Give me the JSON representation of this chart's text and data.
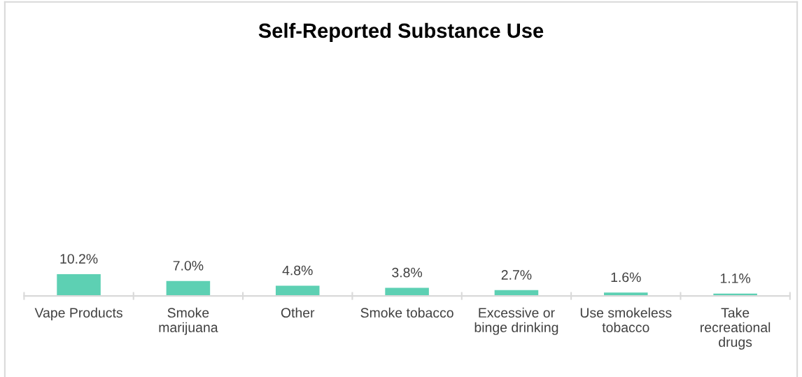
{
  "chart_data": {
    "type": "bar",
    "title": "Self-Reported Substance Use",
    "categories": [
      "Vape Products",
      "Smoke\nmarijuana",
      "Other",
      "Smoke tobacco",
      "Excessive or\nbinge drinking",
      "Use smokeless\ntobacco",
      "Take\nrecreational\ndrugs"
    ],
    "values": [
      10.2,
      7.0,
      4.8,
      3.8,
      2.7,
      1.6,
      1.1
    ],
    "value_labels": [
      "10.2%",
      "7.0%",
      "4.8%",
      "3.8%",
      "2.7%",
      "1.6%",
      "1.1%"
    ],
    "color": "#5dd0b3",
    "tick_labels": "x",
    "grid": false,
    "legend": false
  }
}
